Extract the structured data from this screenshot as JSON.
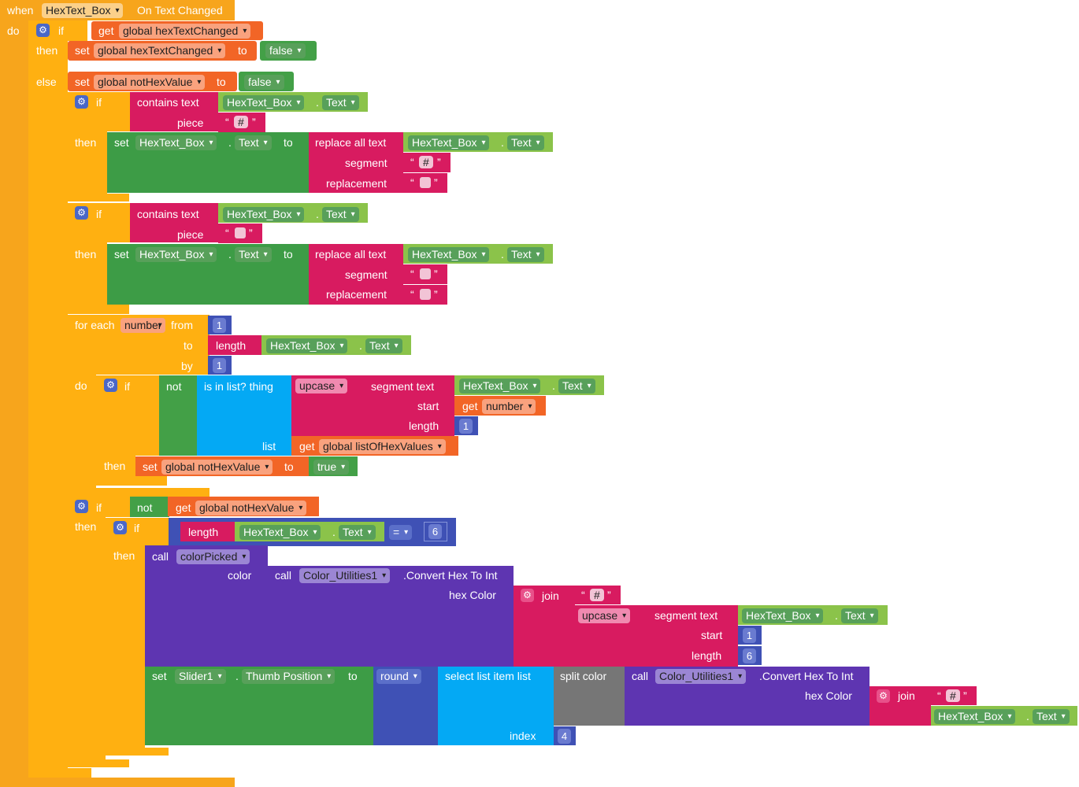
{
  "event": {
    "when": "when",
    "component": "HexText_Box",
    "event_name": "On Text Changed",
    "do": "do"
  },
  "ctrl": {
    "if": "if",
    "then": "then",
    "else": "else",
    "do": "do",
    "to": "to",
    "by": "by",
    "from": "from",
    "for_each": "for each"
  },
  "words": {
    "get": "get",
    "set": "set",
    "to": "to",
    "call": "call",
    "not": "not",
    "contains_text": "contains  text",
    "piece": "piece",
    "replace_all_text": "replace all text",
    "segment": "segment",
    "replacement": "replacement",
    "length": "length",
    "is_in_list": "is in list? thing",
    "list": "list",
    "upcase": "upcase",
    "segment_text": "segment  text",
    "start": "start",
    "color": "color",
    "hex_color": "hex Color",
    "join": "join",
    "select_list_item": "select list item  list",
    "index": "index",
    "split_color": "split color",
    "round": "round",
    "dot": ".",
    "quote_open": "“",
    "quote_close": "”"
  },
  "vars": {
    "hexTextChanged": "global hexTextChanged",
    "notHexValue": "global notHexValue",
    "listOfHexValues": "global listOfHexValues",
    "number": "number"
  },
  "components": {
    "hexbox": "HexText_Box",
    "text_prop": "Text",
    "slider": "Slider1",
    "thumb": "Thumb Position",
    "utils": "Color_Utilities1",
    "convert": ".Convert Hex To Int"
  },
  "values": {
    "false": "false",
    "true": "true",
    "hash": "#",
    "one": "1",
    "six": "6",
    "four": "4",
    "eq": "="
  },
  "procedure": {
    "name": "colorPicked"
  },
  "colors": {
    "event": "#f7a51c",
    "control": "#ffb011",
    "variable": "#f26526",
    "text": "#d81b60",
    "component_setter": "#3d9c46",
    "component_getter": "#8bc34a",
    "logic": "#43a047",
    "list": "#04a9f4",
    "procedure": "#5e35b1",
    "math": "#3f51b5",
    "split_color": "#767676"
  }
}
